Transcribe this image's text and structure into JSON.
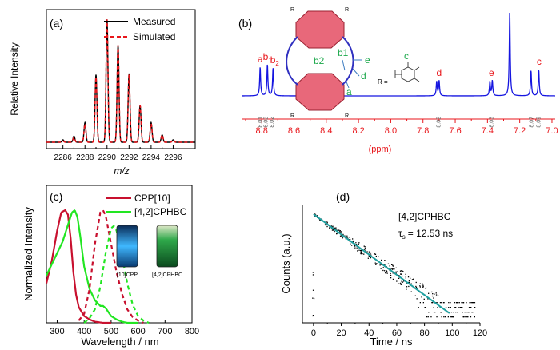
{
  "panels": {
    "a": {
      "label": "(a)"
    },
    "b": {
      "label": "(b)"
    },
    "c": {
      "label": "(c)"
    },
    "d": {
      "label": "(d)"
    }
  },
  "colors": {
    "measured": "#000000",
    "simulated": "#e8161b",
    "nmr_line": "#1515e0",
    "nmr_axis": "#e8161b",
    "nmr_letter": "#e8161b",
    "struct_green": "#1aa84a",
    "cpp": "#c8102e",
    "cphbc": "#22e622",
    "decay_dots": "#000000",
    "decay_fit": "#20a0a0",
    "molecule_pink": "#e8687a",
    "molecule_blue": "#3030c0",
    "vial_blue": "#3fb8ff",
    "vial_green": "#1f9a3f"
  },
  "chart_data": [
    {
      "id": "a",
      "type": "line",
      "title": "",
      "xlabel": "m/z",
      "ylabel": "Relative Intensity",
      "xlim": [
        2284.5,
        2298
      ],
      "ylim": [
        0,
        1.08
      ],
      "xticks": [
        2286,
        2288,
        2290,
        2292,
        2294,
        2296
      ],
      "legend": [
        {
          "name": "Measured",
          "color": "#000000",
          "style": "solid"
        },
        {
          "name": "Simulated",
          "color": "#e8161b",
          "style": "dashed"
        }
      ],
      "legend_position": "top-right",
      "peaks": {
        "x": [
          2286,
          2287,
          2288,
          2289,
          2290,
          2291,
          2292,
          2293,
          2294,
          2295,
          2296
        ],
        "measured": [
          0.02,
          0.05,
          0.16,
          0.55,
          1.0,
          0.79,
          0.56,
          0.3,
          0.16,
          0.06,
          0.02
        ],
        "simulated": [
          0.01,
          0.04,
          0.15,
          0.53,
          1.0,
          0.79,
          0.55,
          0.3,
          0.15,
          0.06,
          0.02
        ]
      }
    },
    {
      "id": "b",
      "type": "line",
      "title": "",
      "xlabel": "(ppm)",
      "xlim": [
        8.92,
        6.98
      ],
      "xticks": [
        8.8,
        8.6,
        8.4,
        8.2,
        8.0,
        7.8,
        7.6,
        7.4,
        7.2,
        7.0
      ],
      "xtick_labels": [
        "8.8",
        "8.6",
        "8.4",
        "8.2",
        "8.0",
        "7.8",
        "7.6",
        "7.4",
        "7.2",
        "7.0"
      ],
      "peaks": [
        {
          "ppm": 8.81,
          "height": 0.34
        },
        {
          "ppm": 8.765,
          "height": 0.37
        },
        {
          "ppm": 8.73,
          "height": 0.33
        },
        {
          "ppm": 7.715,
          "height": 0.17
        },
        {
          "ppm": 7.7,
          "height": 0.18
        },
        {
          "ppm": 7.385,
          "height": 0.17
        },
        {
          "ppm": 7.37,
          "height": 0.18
        },
        {
          "ppm": 7.262,
          "height": 1.0
        },
        {
          "ppm": 7.13,
          "height": 0.3
        },
        {
          "ppm": 7.082,
          "height": 0.31
        }
      ],
      "peak_labels": [
        {
          "text": "a",
          "ppm": 8.81
        },
        {
          "text": "b1",
          "ppm": 8.765
        },
        {
          "text": "b2",
          "ppm": 8.72
        },
        {
          "text": "d",
          "ppm": 7.7
        },
        {
          "text": "e",
          "ppm": 7.375
        },
        {
          "text": "c",
          "ppm": 7.08
        }
      ],
      "integrals": [
        {
          "text": "8.01",
          "ppm": 8.81
        },
        {
          "text": "8.02",
          "ppm": 8.775
        },
        {
          "text": "8.02",
          "ppm": 8.74
        },
        {
          "text": "8.02",
          "ppm": 7.705
        },
        {
          "text": "8.03",
          "ppm": 7.377
        },
        {
          "text": "8.07",
          "ppm": 7.13
        },
        {
          "text": "8.09",
          "ppm": 7.085
        }
      ],
      "structure_labels": {
        "r": "R",
        "r_eq": "R =",
        "b2": "b2",
        "b1": "b1",
        "e": "e",
        "d": "d",
        "a": "a",
        "c": "c"
      }
    },
    {
      "id": "c",
      "type": "line",
      "title": "",
      "xlabel": "Wavelength / nm",
      "ylabel": "Normalized Intensity",
      "xlim": [
        260,
        800
      ],
      "ylim": [
        0,
        1.22
      ],
      "xticks": [
        300,
        400,
        500,
        600,
        700,
        800
      ],
      "legend": [
        {
          "name": "CPP[10]",
          "color": "#c8102e"
        },
        {
          "name": "[4,2]CPHBC",
          "color": "#22e622"
        }
      ],
      "legend_position": "top-right",
      "series": [
        {
          "name": "CPP[10] absorption",
          "style": "solid",
          "color": "#c8102e",
          "x": [
            260,
            280,
            300,
            315,
            330,
            340,
            350,
            360,
            370,
            380,
            400,
            420,
            440,
            470,
            500
          ],
          "y": [
            0.35,
            0.55,
            0.82,
            0.98,
            1.0,
            0.96,
            0.75,
            0.45,
            0.25,
            0.14,
            0.06,
            0.03,
            0.01,
            0.0,
            0.0
          ]
        },
        {
          "name": "[4,2]CPHBC absorption",
          "style": "solid",
          "color": "#22e622",
          "x": [
            260,
            280,
            300,
            320,
            340,
            355,
            365,
            375,
            385,
            400,
            420,
            440,
            460,
            470,
            480,
            500,
            520,
            540,
            560,
            600
          ],
          "y": [
            0.42,
            0.52,
            0.62,
            0.72,
            0.87,
            0.98,
            1.0,
            0.94,
            0.78,
            0.5,
            0.3,
            0.2,
            0.15,
            0.15,
            0.13,
            0.06,
            0.03,
            0.01,
            0.0,
            0.0
          ]
        },
        {
          "name": "CPP[10] emission",
          "style": "dashed",
          "color": "#c8102e",
          "x": [
            380,
            400,
            420,
            440,
            460,
            470,
            480,
            500,
            520,
            540,
            560,
            580,
            600,
            620
          ],
          "y": [
            0.02,
            0.08,
            0.3,
            0.7,
            0.98,
            1.0,
            0.95,
            0.7,
            0.45,
            0.26,
            0.12,
            0.05,
            0.02,
            0.0
          ]
        },
        {
          "name": "[4,2]CPHBC emission",
          "style": "dashed",
          "color": "#22e622",
          "x": [
            400,
            420,
            440,
            460,
            480,
            500,
            510,
            520,
            540,
            560,
            580,
            600,
            620,
            640
          ],
          "y": [
            0.0,
            0.04,
            0.12,
            0.32,
            0.62,
            0.84,
            0.86,
            0.82,
            0.6,
            0.35,
            0.16,
            0.06,
            0.02,
            0.0
          ]
        }
      ],
      "inset": {
        "labels": [
          "[10]CPP",
          "[4,2]CPHBC"
        ]
      }
    },
    {
      "id": "d",
      "type": "scatter",
      "title": "",
      "xlabel": "Time / ns",
      "ylabel": "Counts (a.u.)",
      "xlim": [
        -8,
        120
      ],
      "xticks": [
        0,
        20,
        40,
        60,
        80,
        100,
        120
      ],
      "yscale": "log",
      "ylog_range": [
        0,
        1.0
      ],
      "annotation": {
        "title": "[4,2]CPHBC",
        "tau_label": "τ",
        "tau_sub": "s",
        "tau_value": "= 12.53 ns"
      },
      "fit": {
        "tau_ns": 12.53,
        "x_start": 0,
        "x_end": 98
      },
      "scatter_points": 360
    }
  ]
}
